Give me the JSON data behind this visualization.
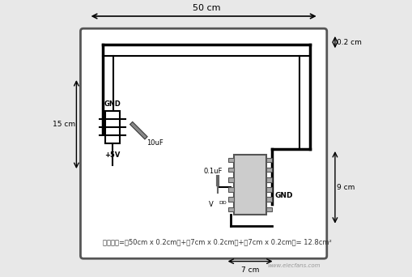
{
  "bg_color": "#e8e8e8",
  "board_color": "#ffffff",
  "line_color": "#000000",
  "gray_color": "#888888",
  "dark_color": "#222222",
  "title_text": "50 cm",
  "left_label": "15 cm",
  "right_top_label": "0.2 cm",
  "right_bot_label": "9 cm",
  "bot_label": "7 cm",
  "formula": "环路面积=（50cm x 0.2cm）+（7cm x 0.2cm）+（7cm x 0.2cm）= 12.8cm²",
  "gnd_label": "GND",
  "v5_label": "+5V",
  "cap_label": "10uF",
  "cap2_label": "0.1uF",
  "vcc_label": "V",
  "vcc_sub": "DD",
  "gnd2_label": "GND"
}
